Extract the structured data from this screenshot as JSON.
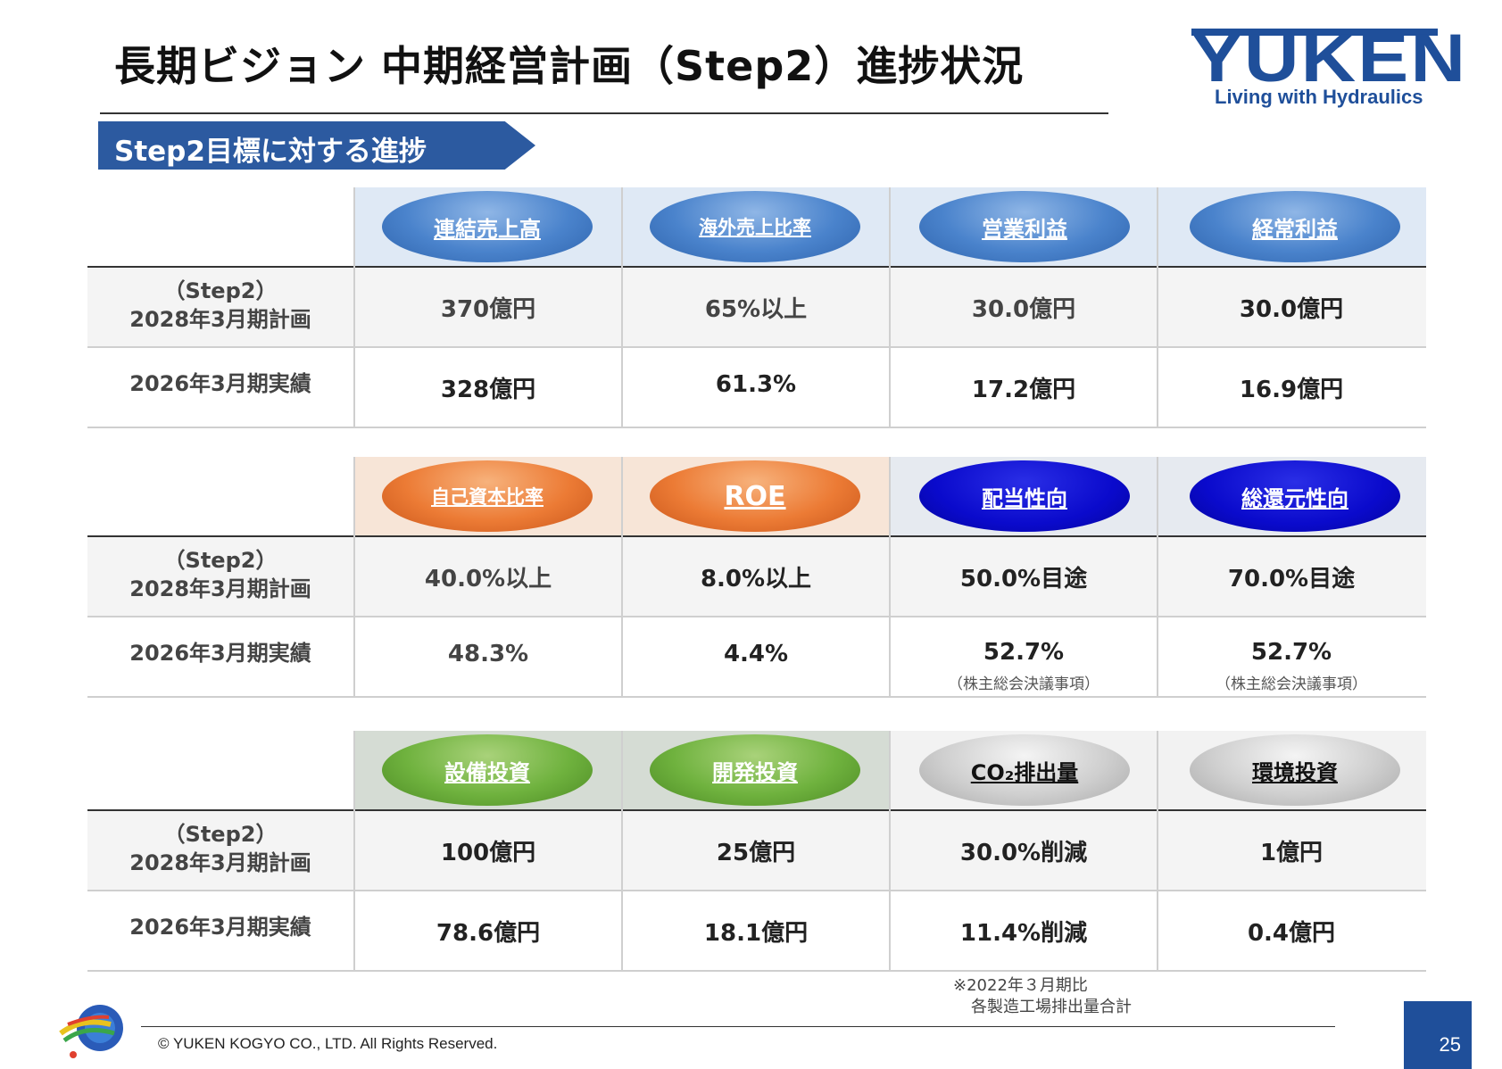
{
  "header": {
    "title": "長期ビジョン 中期経営計画（Step2）進捗状況",
    "logo_word": "YUKEN",
    "logo_tagline": "Living with Hydraulics"
  },
  "section": {
    "label": "Step2目標に対する進捗"
  },
  "row_labels": {
    "plan_line1": "（Step2）",
    "plan_line2": "2028年3月期計画",
    "actual": "2026年3月期実績"
  },
  "blocks": [
    {
      "header_bg": "#dfe9f5",
      "columns": [
        {
          "label": "連結売上高",
          "style": "blue",
          "plan": "370億円",
          "actual": "328億円"
        },
        {
          "label": "海外売上比率",
          "style": "blue",
          "plan": "65%以上",
          "actual": "61.3%"
        },
        {
          "label": "営業利益",
          "style": "blue",
          "plan": "30.0億円",
          "actual": "17.2億円"
        },
        {
          "label": "経常利益",
          "style": "blue",
          "plan": "30.0億円",
          "actual": "16.9億円"
        }
      ]
    },
    {
      "header_bg_left": "#f7e5d7",
      "header_bg_right": "#e6eaf0",
      "columns": [
        {
          "label": "自己資本比率",
          "style": "orange",
          "plan": "40.0%以上",
          "actual": "48.3%"
        },
        {
          "label": "ROE",
          "style": "orange",
          "plan": "8.0%以上",
          "actual": "4.4%"
        },
        {
          "label": "配当性向",
          "style": "navy",
          "plan": "50.0%目途",
          "actual": "52.7%",
          "note": "（株主総会決議事項）"
        },
        {
          "label": "総還元性向",
          "style": "navy",
          "plan": "70.0%目途",
          "actual": "52.7%",
          "note": "（株主総会決議事項）"
        }
      ]
    },
    {
      "header_bg_left": "#d5dcd4",
      "header_bg_right": "#f2f2f2",
      "columns": [
        {
          "label": "設備投資",
          "style": "green",
          "plan": "100億円",
          "actual": "78.6億円"
        },
        {
          "label": "開発投資",
          "style": "green",
          "plan": "25億円",
          "actual": "18.1億円"
        },
        {
          "label": "CO₂排出量",
          "style": "grey",
          "plan": "30.0%削減",
          "actual": "11.4%削減"
        },
        {
          "label": "環境投資",
          "style": "grey",
          "plan": "1億円",
          "actual": "0.4億円"
        }
      ]
    }
  ],
  "footnote": {
    "line1": "※2022年３月期比",
    "line2": "各製造工場排出量合計"
  },
  "footer": {
    "copyright": "© YUKEN KOGYO CO., LTD. All Rights Reserved.",
    "page_number": "25"
  }
}
